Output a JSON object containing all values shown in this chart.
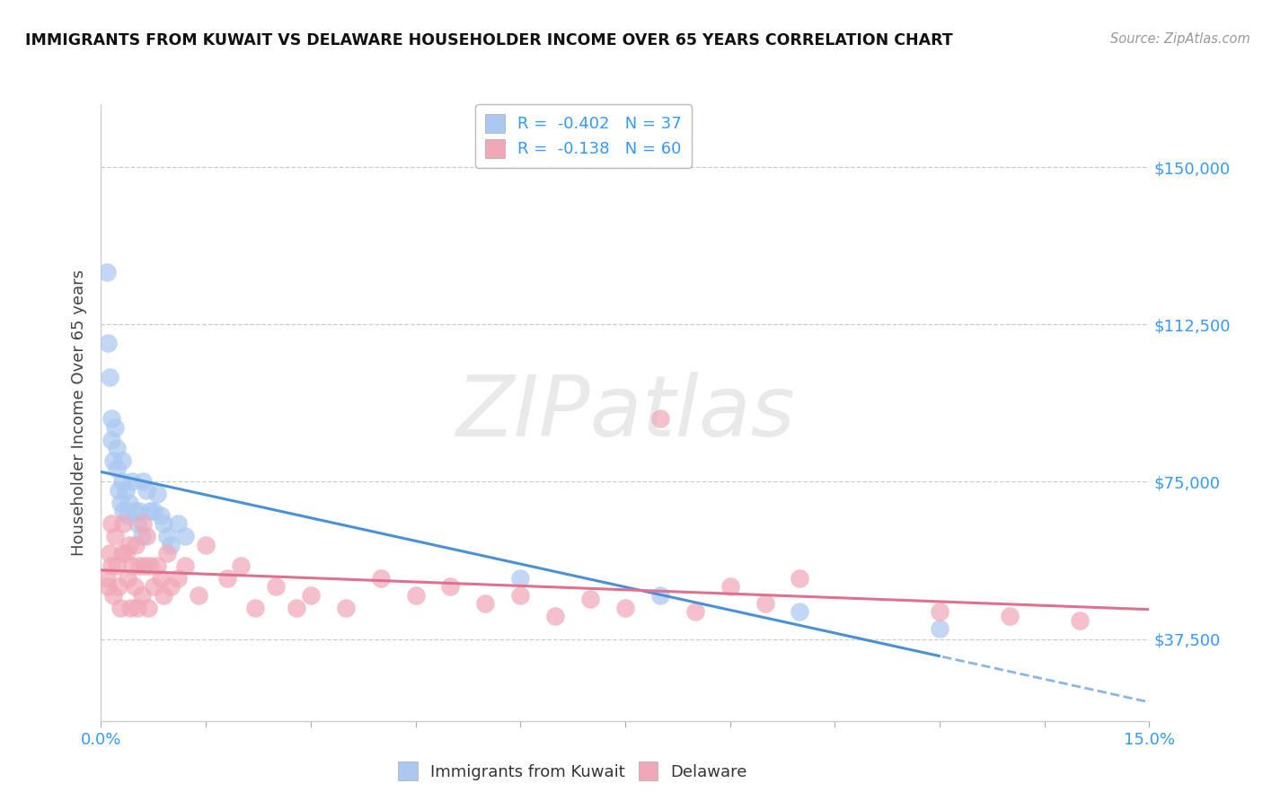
{
  "title": "IMMIGRANTS FROM KUWAIT VS DELAWARE HOUSEHOLDER INCOME OVER 65 YEARS CORRELATION CHART",
  "source": "Source: ZipAtlas.com",
  "ylabel": "Householder Income Over 65 years",
  "xlim": [
    0.0,
    0.15
  ],
  "ylim": [
    18000,
    165000
  ],
  "ytick_positions": [
    37500,
    75000,
    112500,
    150000
  ],
  "ytick_labels": [
    "$37,500",
    "$75,000",
    "$112,500",
    "$150,000"
  ],
  "kuwait_color": "#aac8f0",
  "delaware_color": "#f0a8b8",
  "kuwait_line_color": "#4a90d9",
  "delaware_line_color": "#e07090",
  "legend1_labels": [
    "R =  -0.402   N = 37",
    "R =  -0.138   N = 60"
  ],
  "legend1_colors": [
    "#aac8f0",
    "#f0a8b8"
  ],
  "bottom_legend_labels": [
    "Immigrants from Kuwait",
    "Delaware"
  ],
  "bottom_legend_colors": [
    "#aac8f0",
    "#f0a8b8"
  ],
  "kuwait_points": [
    [
      0.0008,
      125000
    ],
    [
      0.001,
      108000
    ],
    [
      0.0012,
      100000
    ],
    [
      0.0015,
      90000
    ],
    [
      0.0015,
      85000
    ],
    [
      0.0018,
      80000
    ],
    [
      0.002,
      88000
    ],
    [
      0.0022,
      83000
    ],
    [
      0.0022,
      78000
    ],
    [
      0.0025,
      73000
    ],
    [
      0.0028,
      70000
    ],
    [
      0.003,
      80000
    ],
    [
      0.003,
      75000
    ],
    [
      0.0032,
      68000
    ],
    [
      0.0035,
      73000
    ],
    [
      0.0038,
      67000
    ],
    [
      0.004,
      70000
    ],
    [
      0.0045,
      75000
    ],
    [
      0.0048,
      68000
    ],
    [
      0.0052,
      65000
    ],
    [
      0.0055,
      68000
    ],
    [
      0.0058,
      62000
    ],
    [
      0.006,
      75000
    ],
    [
      0.0065,
      73000
    ],
    [
      0.007,
      68000
    ],
    [
      0.0075,
      68000
    ],
    [
      0.008,
      72000
    ],
    [
      0.0085,
      67000
    ],
    [
      0.009,
      65000
    ],
    [
      0.0095,
      62000
    ],
    [
      0.01,
      60000
    ],
    [
      0.011,
      65000
    ],
    [
      0.012,
      62000
    ],
    [
      0.06,
      52000
    ],
    [
      0.08,
      48000
    ],
    [
      0.1,
      44000
    ],
    [
      0.12,
      40000
    ]
  ],
  "delaware_points": [
    [
      0.0008,
      52000
    ],
    [
      0.001,
      50000
    ],
    [
      0.0012,
      58000
    ],
    [
      0.0015,
      55000
    ],
    [
      0.0015,
      65000
    ],
    [
      0.0018,
      48000
    ],
    [
      0.002,
      62000
    ],
    [
      0.0022,
      55000
    ],
    [
      0.0025,
      50000
    ],
    [
      0.0028,
      45000
    ],
    [
      0.003,
      58000
    ],
    [
      0.0032,
      65000
    ],
    [
      0.0035,
      58000
    ],
    [
      0.0038,
      52000
    ],
    [
      0.004,
      60000
    ],
    [
      0.0042,
      45000
    ],
    [
      0.0045,
      55000
    ],
    [
      0.0048,
      50000
    ],
    [
      0.005,
      60000
    ],
    [
      0.0052,
      45000
    ],
    [
      0.0055,
      55000
    ],
    [
      0.0058,
      48000
    ],
    [
      0.006,
      65000
    ],
    [
      0.0062,
      55000
    ],
    [
      0.0065,
      62000
    ],
    [
      0.0068,
      45000
    ],
    [
      0.007,
      55000
    ],
    [
      0.0075,
      50000
    ],
    [
      0.008,
      55000
    ],
    [
      0.0085,
      52000
    ],
    [
      0.009,
      48000
    ],
    [
      0.0095,
      58000
    ],
    [
      0.01,
      50000
    ],
    [
      0.011,
      52000
    ],
    [
      0.012,
      55000
    ],
    [
      0.014,
      48000
    ],
    [
      0.015,
      60000
    ],
    [
      0.018,
      52000
    ],
    [
      0.02,
      55000
    ],
    [
      0.022,
      45000
    ],
    [
      0.025,
      50000
    ],
    [
      0.028,
      45000
    ],
    [
      0.03,
      48000
    ],
    [
      0.035,
      45000
    ],
    [
      0.04,
      52000
    ],
    [
      0.045,
      48000
    ],
    [
      0.05,
      50000
    ],
    [
      0.055,
      46000
    ],
    [
      0.06,
      48000
    ],
    [
      0.065,
      43000
    ],
    [
      0.07,
      47000
    ],
    [
      0.075,
      45000
    ],
    [
      0.08,
      90000
    ],
    [
      0.085,
      44000
    ],
    [
      0.09,
      50000
    ],
    [
      0.095,
      46000
    ],
    [
      0.1,
      52000
    ],
    [
      0.12,
      44000
    ],
    [
      0.13,
      43000
    ],
    [
      0.14,
      42000
    ]
  ],
  "watermark_text": "ZIPatlas",
  "watermark_color": "#d8d8d8"
}
